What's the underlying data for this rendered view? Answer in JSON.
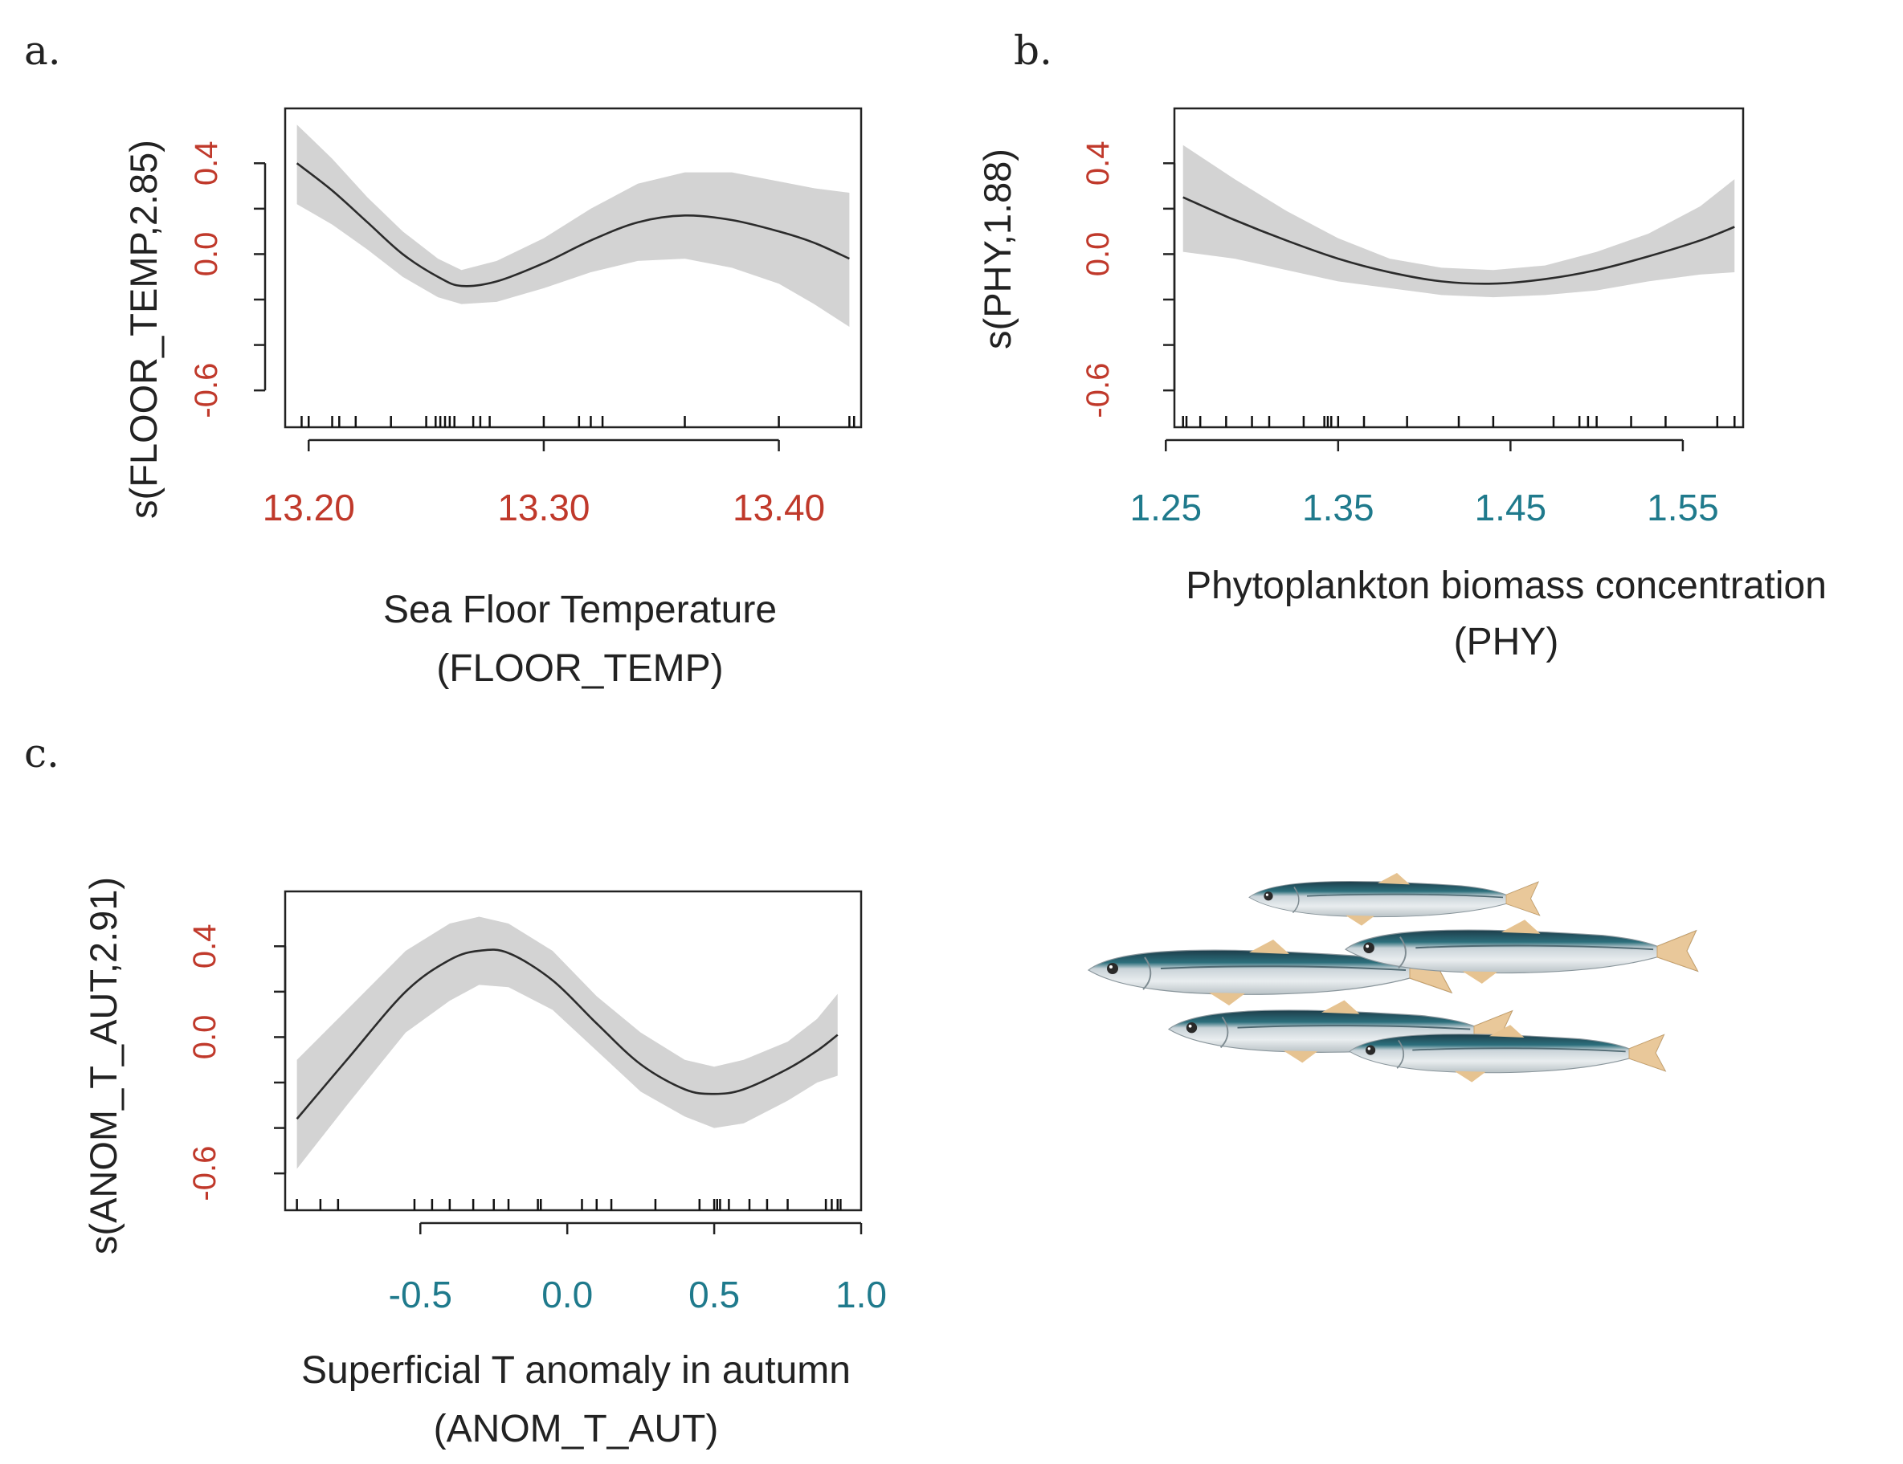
{
  "chart_data": [
    {
      "panel_label": "a.",
      "type": "line",
      "ylabel": "s(FLOOR_TEMP,2.85)",
      "xlabel": "Sea Floor Temperature",
      "xlabel2": "(FLOOR_TEMP)",
      "xlim": [
        13.19,
        13.435
      ],
      "ylim": [
        -0.6,
        0.4
      ],
      "x_ticks": [
        13.2,
        13.3,
        13.4
      ],
      "x_tick_labels": [
        "13.20",
        "13.30",
        "13.40"
      ],
      "y_ticks": [
        -0.6,
        -0.4,
        -0.2,
        0.0,
        0.2,
        0.4
      ],
      "y_tick_labels": [
        "-0.6",
        "",
        "",
        "0.0",
        "",
        "0.4"
      ],
      "x_tick_color": "#c0392b",
      "y_tick_color": "#c0392b",
      "x": [
        13.195,
        13.21,
        13.225,
        13.24,
        13.255,
        13.265,
        13.28,
        13.3,
        13.32,
        13.34,
        13.36,
        13.38,
        13.4,
        13.415,
        13.43
      ],
      "y": [
        0.4,
        0.28,
        0.14,
        0.0,
        -0.1,
        -0.14,
        -0.12,
        -0.04,
        0.06,
        0.14,
        0.17,
        0.15,
        0.1,
        0.05,
        -0.02
      ],
      "upper": [
        0.57,
        0.42,
        0.25,
        0.1,
        -0.02,
        -0.07,
        -0.03,
        0.07,
        0.2,
        0.31,
        0.36,
        0.36,
        0.32,
        0.29,
        0.27
      ],
      "lower": [
        0.22,
        0.13,
        0.02,
        -0.1,
        -0.19,
        -0.22,
        -0.21,
        -0.15,
        -0.08,
        -0.03,
        -0.02,
        -0.06,
        -0.13,
        -0.22,
        -0.32
      ],
      "rug": [
        13.197,
        13.2,
        13.21,
        13.213,
        13.22,
        13.235,
        13.25,
        13.254,
        13.256,
        13.258,
        13.26,
        13.262,
        13.27,
        13.273,
        13.277,
        13.3,
        13.315,
        13.32,
        13.325,
        13.36,
        13.4,
        13.43,
        13.432
      ]
    },
    {
      "panel_label": "b.",
      "type": "line",
      "ylabel": "s(PHY,1.88)",
      "xlabel": "Phytoplankton biomass concentration",
      "xlabel2": "(PHY)",
      "xlim": [
        1.255,
        1.585
      ],
      "ylim": [
        -0.6,
        0.4
      ],
      "x_ticks": [
        1.25,
        1.35,
        1.45,
        1.55
      ],
      "x_tick_labels": [
        "1.25",
        "1.35",
        "1.45",
        "1.55"
      ],
      "y_ticks": [
        -0.6,
        -0.4,
        -0.2,
        0.0,
        0.2,
        0.4
      ],
      "y_tick_labels": [
        "-0.6",
        "",
        "",
        "0.0",
        "",
        "0.4"
      ],
      "x_tick_color": "#1f7a8c",
      "y_tick_color": "#c0392b",
      "x": [
        1.26,
        1.29,
        1.32,
        1.35,
        1.38,
        1.41,
        1.44,
        1.47,
        1.5,
        1.53,
        1.56,
        1.58
      ],
      "y": [
        0.25,
        0.15,
        0.06,
        -0.02,
        -0.08,
        -0.12,
        -0.13,
        -0.11,
        -0.07,
        -0.01,
        0.06,
        0.12
      ],
      "upper": [
        0.48,
        0.33,
        0.19,
        0.07,
        -0.02,
        -0.06,
        -0.07,
        -0.05,
        0.01,
        0.09,
        0.21,
        0.33
      ],
      "lower": [
        0.01,
        -0.02,
        -0.07,
        -0.12,
        -0.15,
        -0.18,
        -0.19,
        -0.18,
        -0.16,
        -0.12,
        -0.09,
        -0.08
      ],
      "rug": [
        1.26,
        1.262,
        1.27,
        1.285,
        1.3,
        1.31,
        1.33,
        1.342,
        1.344,
        1.346,
        1.35,
        1.365,
        1.39,
        1.42,
        1.44,
        1.475,
        1.49,
        1.495,
        1.5,
        1.52,
        1.54,
        1.57,
        1.58
      ]
    },
    {
      "panel_label": "c.",
      "type": "line",
      "ylabel": "s(ANOM_T_AUT,2.91)",
      "xlabel": "Superficial T anomaly in autumn",
      "xlabel2": "(ANOM_T_AUT)",
      "xlim": [
        -0.96,
        1.0
      ],
      "ylim": [
        -0.6,
        0.4
      ],
      "x_ticks": [
        -0.5,
        0.0,
        0.5,
        1.0
      ],
      "x_tick_labels": [
        "-0.5",
        "0.0",
        "0.5",
        "1.0"
      ],
      "y_ticks": [
        -0.6,
        -0.4,
        -0.2,
        0.0,
        0.2,
        0.4
      ],
      "y_tick_labels": [
        "-0.6",
        "",
        "",
        "0.0",
        "",
        "0.4"
      ],
      "x_tick_color": "#1f7a8c",
      "y_tick_color": "#c0392b",
      "x": [
        -0.92,
        -0.75,
        -0.55,
        -0.4,
        -0.3,
        -0.2,
        -0.05,
        0.1,
        0.25,
        0.4,
        0.5,
        0.6,
        0.75,
        0.85,
        0.92
      ],
      "y": [
        -0.36,
        -0.1,
        0.2,
        0.34,
        0.38,
        0.37,
        0.25,
        0.06,
        -0.12,
        -0.23,
        -0.25,
        -0.23,
        -0.14,
        -0.06,
        0.01
      ],
      "upper": [
        -0.1,
        0.12,
        0.38,
        0.5,
        0.53,
        0.5,
        0.38,
        0.18,
        0.02,
        -0.1,
        -0.13,
        -0.1,
        -0.02,
        0.08,
        0.19
      ],
      "lower": [
        -0.58,
        -0.3,
        0.02,
        0.16,
        0.23,
        0.22,
        0.12,
        -0.06,
        -0.24,
        -0.35,
        -0.4,
        -0.38,
        -0.28,
        -0.2,
        -0.17
      ],
      "rug": [
        -0.92,
        -0.84,
        -0.78,
        -0.52,
        -0.46,
        -0.4,
        -0.32,
        -0.25,
        -0.2,
        -0.1,
        -0.09,
        0.05,
        0.1,
        0.15,
        0.3,
        0.45,
        0.5,
        0.51,
        0.52,
        0.55,
        0.62,
        0.68,
        0.75,
        0.88,
        0.9,
        0.92,
        0.93
      ]
    }
  ]
}
